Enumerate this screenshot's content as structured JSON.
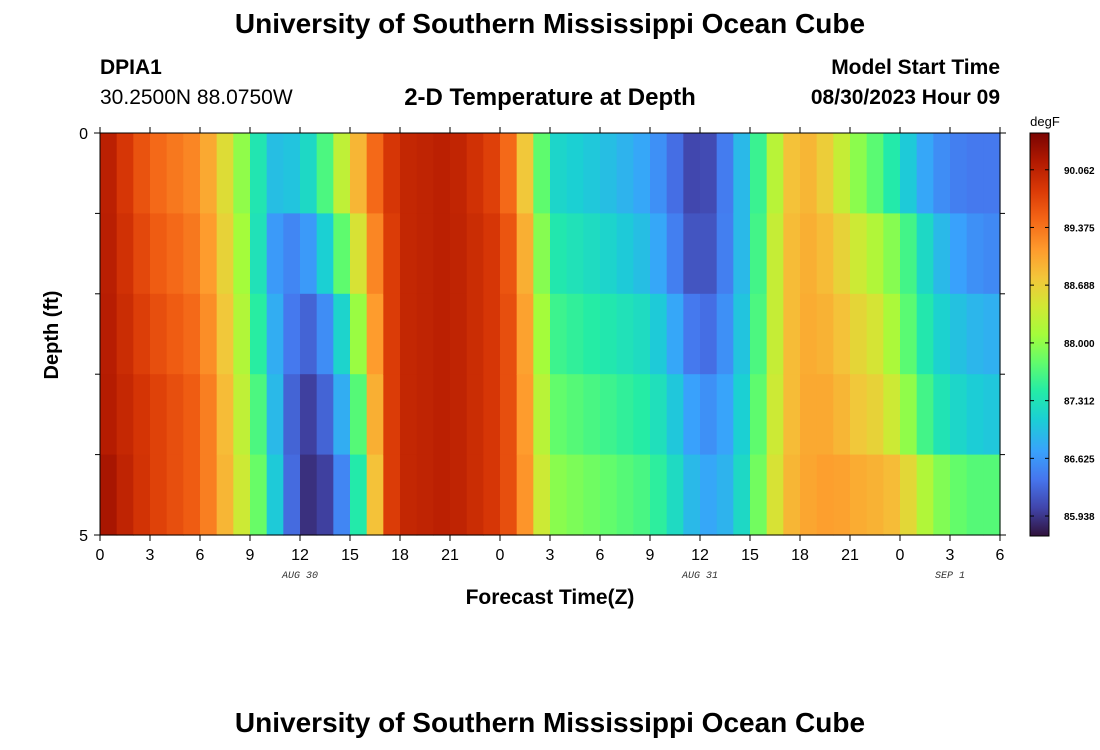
{
  "header": {
    "title": "University of Southern Mississippi Ocean Cube",
    "station_id": "DPIA1",
    "coordinates": "30.2500N  88.0750W",
    "plot_title": "2-D Temperature at Depth",
    "model_start_label": "Model Start Time",
    "model_start_value": "08/30/2023 Hour 09"
  },
  "footer": {
    "title": "University of Southern Mississippi Ocean Cube"
  },
  "colors": {
    "background": "#ffffff",
    "text": "#000000"
  },
  "chart_data": {
    "type": "heatmap",
    "title": "2-D Temperature at Depth",
    "xlabel": "Forecast Time(Z)",
    "ylabel": "Depth (ft)",
    "units": "degF",
    "x_hours": [
      0,
      54
    ],
    "x_ticks": [
      "0",
      "3",
      "6",
      "9",
      "12",
      "15",
      "18",
      "21",
      "0",
      "3",
      "6",
      "9",
      "12",
      "15",
      "18",
      "21",
      "0",
      "3",
      "6"
    ],
    "date_labels": [
      {
        "label": "AUG 30",
        "hour": 12
      },
      {
        "label": "AUG 31",
        "hour": 36
      },
      {
        "label": "SEP 1",
        "hour": 51
      }
    ],
    "y_range": [
      0,
      5
    ],
    "y_ticks": [
      "0",
      "5"
    ],
    "depth_rows": 5,
    "colorbar_ticks": [
      "90.062",
      "89.375",
      "88.688",
      "88.000",
      "87.312",
      "86.625",
      "85.938"
    ],
    "colorbar_values": [
      90.062,
      89.375,
      88.688,
      88.0,
      87.312,
      86.625,
      85.938
    ],
    "vmin": 85.7,
    "vmax": 90.5,
    "temperature_keyframes": [
      {
        "hour": 0,
        "temps": [
          90.2,
          90.2,
          90.2,
          90.2,
          90.3
        ]
      },
      {
        "hour": 3,
        "temps": [
          89.5,
          89.6,
          89.7,
          89.8,
          89.8
        ]
      },
      {
        "hour": 6,
        "temps": [
          89.2,
          89.3,
          89.4,
          89.5,
          89.5
        ]
      },
      {
        "hour": 7,
        "temps": [
          88.8,
          88.9,
          89.0,
          89.1,
          89.1
        ]
      },
      {
        "hour": 8,
        "temps": [
          88.3,
          88.4,
          88.5,
          88.6,
          88.7
        ]
      },
      {
        "hour": 9,
        "temps": [
          87.7,
          87.8,
          87.9,
          88.0,
          88.1
        ]
      },
      {
        "hour": 10,
        "temps": [
          87.0,
          86.8,
          87.0,
          87.3,
          87.5
        ]
      },
      {
        "hour": 11,
        "temps": [
          86.9,
          86.5,
          86.6,
          86.5,
          86.6
        ]
      },
      {
        "hour": 12,
        "temps": [
          87.1,
          86.5,
          86.2,
          86.0,
          86.0
        ]
      },
      {
        "hour": 13,
        "temps": [
          87.3,
          86.8,
          86.3,
          86.0,
          85.8
        ]
      },
      {
        "hour": 14,
        "temps": [
          88.0,
          87.4,
          86.8,
          86.5,
          86.2
        ]
      },
      {
        "hour": 15,
        "temps": [
          88.6,
          88.1,
          87.5,
          87.1,
          86.8
        ]
      },
      {
        "hour": 16,
        "temps": [
          89.2,
          88.9,
          88.6,
          88.3,
          88.0
        ]
      },
      {
        "hour": 17,
        "temps": [
          89.7,
          89.6,
          89.6,
          89.6,
          89.6
        ]
      },
      {
        "hour": 18,
        "temps": [
          90.0,
          90.0,
          90.0,
          90.0,
          90.0
        ]
      },
      {
        "hour": 21,
        "temps": [
          90.1,
          90.1,
          90.1,
          90.1,
          90.1
        ]
      },
      {
        "hour": 24,
        "temps": [
          89.7,
          89.8,
          89.8,
          89.8,
          89.8
        ]
      },
      {
        "hour": 25,
        "temps": [
          89.2,
          89.4,
          89.5,
          89.5,
          89.5
        ]
      },
      {
        "hour": 26,
        "temps": [
          88.3,
          88.5,
          88.6,
          88.7,
          88.8
        ]
      },
      {
        "hour": 27,
        "temps": [
          87.2,
          87.4,
          87.6,
          87.8,
          88.0
        ]
      },
      {
        "hour": 30,
        "temps": [
          87.0,
          87.2,
          87.4,
          87.6,
          87.8
        ]
      },
      {
        "hour": 33,
        "temps": [
          86.7,
          86.9,
          87.2,
          87.4,
          87.6
        ]
      },
      {
        "hour": 35,
        "temps": [
          86.2,
          86.3,
          86.6,
          86.9,
          87.1
        ]
      },
      {
        "hour": 36,
        "temps": [
          85.9,
          86.0,
          86.2,
          86.5,
          86.7
        ]
      },
      {
        "hour": 38,
        "temps": [
          86.6,
          86.6,
          86.7,
          86.8,
          86.9
        ]
      },
      {
        "hour": 39,
        "temps": [
          87.2,
          87.2,
          87.3,
          87.4,
          87.5
        ]
      },
      {
        "hour": 40,
        "temps": [
          87.9,
          88.0,
          88.0,
          88.1,
          88.2
        ]
      },
      {
        "hour": 41,
        "temps": [
          88.6,
          88.7,
          88.7,
          88.7,
          88.8
        ]
      },
      {
        "hour": 42,
        "temps": [
          89.0,
          89.0,
          89.0,
          89.0,
          89.0
        ]
      },
      {
        "hour": 44,
        "temps": [
          88.6,
          88.8,
          88.9,
          89.0,
          89.1
        ]
      },
      {
        "hour": 45,
        "temps": [
          88.1,
          88.5,
          88.7,
          88.8,
          89.0
        ]
      },
      {
        "hour": 47,
        "temps": [
          87.6,
          88.1,
          88.4,
          88.6,
          88.9
        ]
      },
      {
        "hour": 48,
        "temps": [
          87.2,
          87.8,
          87.9,
          88.2,
          88.8
        ]
      },
      {
        "hour": 50,
        "temps": [
          86.6,
          87.0,
          87.2,
          87.4,
          88.0
        ]
      },
      {
        "hour": 52,
        "temps": [
          86.4,
          86.6,
          86.9,
          87.1,
          87.7
        ]
      },
      {
        "hour": 54,
        "temps": [
          86.4,
          86.5,
          86.8,
          87.0,
          87.7
        ]
      }
    ]
  }
}
